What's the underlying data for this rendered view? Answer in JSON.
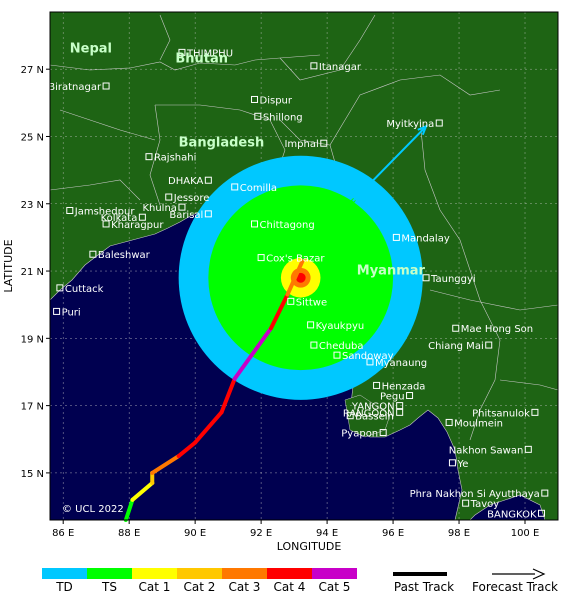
{
  "axes": {
    "xlabel": "LONGITUDE",
    "ylabel": "LATITUDE",
    "lon_ticks": [
      {
        "value": 86,
        "label": "86 E"
      },
      {
        "value": 88,
        "label": "88 E"
      },
      {
        "value": 90,
        "label": "90 E"
      },
      {
        "value": 92,
        "label": "92 E"
      },
      {
        "value": 94,
        "label": "94 E"
      },
      {
        "value": 96,
        "label": "96 E"
      },
      {
        "value": 98,
        "label": "98 E"
      },
      {
        "value": 100,
        "label": "100 E"
      }
    ],
    "lat_ticks": [
      {
        "value": 27,
        "label": "27 N"
      },
      {
        "value": 25,
        "label": "25 N"
      },
      {
        "value": 23,
        "label": "23 N"
      },
      {
        "value": 21,
        "label": "21 N"
      },
      {
        "value": 19,
        "label": "19 N"
      },
      {
        "value": 17,
        "label": "17 N"
      },
      {
        "value": 15,
        "label": "15 N"
      }
    ],
    "lon_range": [
      85.6,
      101.0
    ],
    "lat_range": [
      13.6,
      28.7
    ]
  },
  "countries": [
    {
      "name": "Nepal",
      "lon": 86.2,
      "lat": 27.5
    },
    {
      "name": "Bhutan",
      "lon": 89.4,
      "lat": 27.2
    },
    {
      "name": "Bangladesh",
      "lon": 89.5,
      "lat": 24.7
    },
    {
      "name": "Myanmar",
      "lon": 94.9,
      "lat": 20.9
    }
  ],
  "cities": [
    {
      "name": "THIMPHU",
      "lon": 89.6,
      "lat": 27.5,
      "side": "right"
    },
    {
      "name": "Itanagar",
      "lon": 93.6,
      "lat": 27.1,
      "side": "right"
    },
    {
      "name": "Biratnagar",
      "lon": 87.3,
      "lat": 26.5,
      "side": "left"
    },
    {
      "name": "Dispur",
      "lon": 91.8,
      "lat": 26.1,
      "side": "right"
    },
    {
      "name": "Shillong",
      "lon": 91.9,
      "lat": 25.6,
      "side": "right"
    },
    {
      "name": "Myitkyina",
      "lon": 97.4,
      "lat": 25.4,
      "side": "left"
    },
    {
      "name": "Imphal",
      "lon": 93.9,
      "lat": 24.8,
      "side": "left"
    },
    {
      "name": "Rajshahi",
      "lon": 88.6,
      "lat": 24.4,
      "side": "right"
    },
    {
      "name": "DHAKA",
      "lon": 90.4,
      "lat": 23.7,
      "side": "left"
    },
    {
      "name": "Comilla",
      "lon": 91.2,
      "lat": 23.5,
      "side": "right"
    },
    {
      "name": "Jessore",
      "lon": 89.2,
      "lat": 23.2,
      "side": "right"
    },
    {
      "name": "Jamshedpur",
      "lon": 86.2,
      "lat": 22.8,
      "side": "right"
    },
    {
      "name": "Khulna",
      "lon": 89.6,
      "lat": 22.9,
      "side": "left"
    },
    {
      "name": "Barisal",
      "lon": 90.4,
      "lat": 22.7,
      "side": "left"
    },
    {
      "name": "Kolkata",
      "lon": 88.4,
      "lat": 22.6,
      "side": "left"
    },
    {
      "name": "Kharagpur",
      "lon": 87.3,
      "lat": 22.4,
      "side": "right"
    },
    {
      "name": "Chittagong",
      "lon": 91.8,
      "lat": 22.4,
      "side": "right"
    },
    {
      "name": "Baleshwar",
      "lon": 86.9,
      "lat": 21.5,
      "side": "right"
    },
    {
      "name": "Cox's Bazar",
      "lon": 92.0,
      "lat": 21.4,
      "side": "right"
    },
    {
      "name": "Mandalay",
      "lon": 96.1,
      "lat": 22.0,
      "side": "right"
    },
    {
      "name": "Taunggyi",
      "lon": 97.0,
      "lat": 20.8,
      "side": "right"
    },
    {
      "name": "Cuttack",
      "lon": 85.9,
      "lat": 20.5,
      "side": "right"
    },
    {
      "name": "Sittwe",
      "lon": 92.9,
      "lat": 20.1,
      "side": "right"
    },
    {
      "name": "Puri",
      "lon": 85.8,
      "lat": 19.8,
      "side": "right"
    },
    {
      "name": "Kyaukpyu",
      "lon": 93.5,
      "lat": 19.4,
      "side": "right"
    },
    {
      "name": "Mae Hong Son",
      "lon": 97.9,
      "lat": 19.3,
      "side": "right"
    },
    {
      "name": "Cheduba",
      "lon": 93.6,
      "lat": 18.8,
      "side": "right"
    },
    {
      "name": "Chiang Mai",
      "lon": 98.9,
      "lat": 18.8,
      "side": "left"
    },
    {
      "name": "Sandoway",
      "lon": 94.3,
      "lat": 18.5,
      "side": "right"
    },
    {
      "name": "Myanaung",
      "lon": 95.3,
      "lat": 18.3,
      "side": "right"
    },
    {
      "name": "Henzada",
      "lon": 95.5,
      "lat": 17.6,
      "side": "right"
    },
    {
      "name": "Pegu",
      "lon": 96.5,
      "lat": 17.3,
      "side": "left"
    },
    {
      "name": "YANGON",
      "lon": 96.2,
      "lat": 17.0,
      "side": "left"
    },
    {
      "name": "RANGOON",
      "lon": 96.2,
      "lat": 16.8,
      "side": "left"
    },
    {
      "name": "Phitsanulok",
      "lon": 100.3,
      "lat": 16.8,
      "side": "left"
    },
    {
      "name": "Bassein",
      "lon": 94.7,
      "lat": 16.7,
      "side": "right"
    },
    {
      "name": "Moulmein",
      "lon": 97.7,
      "lat": 16.5,
      "side": "right"
    },
    {
      "name": "Pyapon",
      "lon": 95.7,
      "lat": 16.2,
      "side": "left"
    },
    {
      "name": "Nakhon Sawan",
      "lon": 100.1,
      "lat": 15.7,
      "side": "left"
    },
    {
      "name": "Ye",
      "lon": 97.8,
      "lat": 15.3,
      "side": "right"
    },
    {
      "name": "Phra Nakhon Si Ayutthaya",
      "lon": 100.6,
      "lat": 14.4,
      "side": "left"
    },
    {
      "name": "Tavoy",
      "lon": 98.2,
      "lat": 14.1,
      "side": "right"
    },
    {
      "name": "BANGKOK",
      "lon": 100.5,
      "lat": 13.8,
      "side": "left"
    }
  ],
  "track": {
    "points": [
      {
        "lon": 87.9,
        "lat": 13.6,
        "cat": "TS"
      },
      {
        "lon": 88.1,
        "lat": 14.2,
        "cat": "TS"
      },
      {
        "lon": 88.7,
        "lat": 14.7,
        "cat": "Cat 1"
      },
      {
        "lon": 88.7,
        "lat": 15.0,
        "cat": "Cat 2"
      },
      {
        "lon": 89.5,
        "lat": 15.5,
        "cat": "Cat 3"
      },
      {
        "lon": 90.0,
        "lat": 15.9,
        "cat": "Cat 4"
      },
      {
        "lon": 90.8,
        "lat": 16.8,
        "cat": "Cat 4"
      },
      {
        "lon": 91.2,
        "lat": 17.8,
        "cat": "Cat 4"
      },
      {
        "lon": 92.3,
        "lat": 19.3,
        "cat": "Cat 5"
      },
      {
        "lon": 92.8,
        "lat": 20.3,
        "cat": "Cat 4"
      },
      {
        "lon": 93.3,
        "lat": 21.4,
        "cat": "Cat 3"
      },
      {
        "lon": 94.8,
        "lat": 23.1,
        "cat": "TS"
      },
      {
        "lon": 97.0,
        "lat": 25.3,
        "cat": "TD"
      }
    ],
    "center": {
      "lon": 93.2,
      "lat": 20.8
    }
  },
  "wind_field": [
    {
      "cat": "TD",
      "radius_deg": 3.7
    },
    {
      "cat": "TS",
      "radius_deg": 2.8
    },
    {
      "cat": "Cat 1",
      "radius_deg": 0.6
    },
    {
      "cat": "Cat 3",
      "radius_deg": 0.3
    },
    {
      "cat": "Cat 4",
      "radius_deg": 0.15
    }
  ],
  "copyright": "© UCL 2022",
  "legend": {
    "categories": [
      {
        "label": "TD",
        "color": "#00c8ff"
      },
      {
        "label": "TS",
        "color": "#00ff00"
      },
      {
        "label": "Cat 1",
        "color": "#ffff00"
      },
      {
        "label": "Cat 2",
        "color": "#ffc800"
      },
      {
        "label": "Cat 3",
        "color": "#ff7800"
      },
      {
        "label": "Cat 4",
        "color": "#ff0000"
      },
      {
        "label": "Cat 5",
        "color": "#c800c8"
      }
    ],
    "past_track": "Past Track",
    "forecast_track": "Forecast Track"
  },
  "colors": {
    "land": "#1e6414",
    "sea": "#000050",
    "border": "#c8c8c8"
  }
}
